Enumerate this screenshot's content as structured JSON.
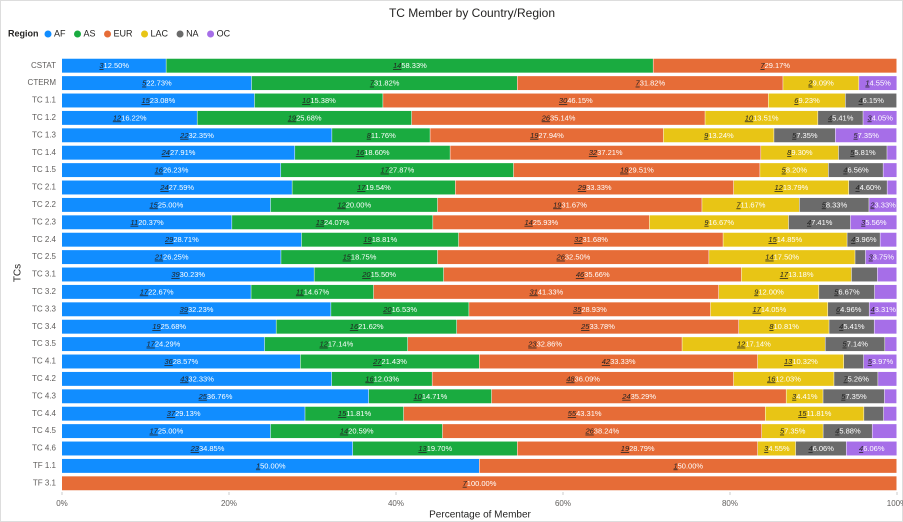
{
  "chart_data": {
    "type": "stacked-bar-100",
    "title": "TC Member by Country/Region",
    "legend_title": "Region",
    "x_label": "Percentage of Member",
    "y_label": "TCs",
    "categories": [
      "CSTAT",
      "CTERM",
      "TC 1.1",
      "TC 1.2",
      "TC 1.3",
      "TC 1.4",
      "TC 1.5",
      "TC 2.1",
      "TC 2.2",
      "TC 2.3",
      "TC 2.4",
      "TC 2.5",
      "TC 3.1",
      "TC 3.2",
      "TC 3.3",
      "TC 3.4",
      "TC 3.5",
      "TC 4.1",
      "TC 4.2",
      "TC 4.3",
      "TC 4.4",
      "TC 4.5",
      "TC 4.6",
      "TF 1.1",
      "TF 3.1"
    ],
    "xlim": [
      0,
      100
    ],
    "xticks": [
      {
        "value": 0,
        "label": "0%"
      },
      {
        "value": 20,
        "label": "20%"
      },
      {
        "value": 40,
        "label": "40%"
      },
      {
        "value": 60,
        "label": "60%"
      },
      {
        "value": 80,
        "label": "80%"
      },
      {
        "value": 100,
        "label": "100%"
      }
    ],
    "series": [
      {
        "name": "AF",
        "color": "#118DFF",
        "values": [
          12.5,
          22.73,
          23.08,
          16.22,
          32.35,
          27.91,
          26.23,
          27.59,
          25.0,
          20.37,
          28.71,
          26.25,
          30.23,
          22.67,
          32.23,
          25.68,
          24.29,
          28.57,
          32.33,
          36.76,
          29.13,
          25.0,
          34.85,
          50.0,
          null
        ],
        "value_labels": [
          "12.50%",
          "22.73%",
          "23.08%",
          "16.22%",
          "32.35%",
          "27.91%",
          "26.23%",
          "27.59%",
          "25.00%",
          "20.37%",
          "28.71%",
          "26.25%",
          "30.23%",
          "22.67%",
          "32.23%",
          "25.68%",
          "24.29%",
          "28.57%",
          "32.33%",
          "36.76%",
          "29.13%",
          "25.00%",
          "34.85%",
          "50.00%",
          null
        ],
        "counts": [
          3,
          5,
          15,
          12,
          22,
          24,
          16,
          24,
          15,
          11,
          29,
          21,
          39,
          17,
          39,
          19,
          17,
          36,
          43,
          25,
          37,
          17,
          23,
          1,
          null
        ]
      },
      {
        "name": "AS",
        "color": "#1AAB40",
        "values": [
          58.33,
          31.82,
          15.38,
          25.68,
          11.76,
          18.6,
          27.87,
          19.54,
          20.0,
          24.07,
          18.81,
          18.75,
          15.5,
          14.67,
          16.53,
          21.62,
          17.14,
          21.43,
          12.03,
          14.71,
          11.81,
          20.59,
          19.7,
          null,
          null
        ],
        "value_labels": [
          "58.33%",
          "31.82%",
          "15.38%",
          "25.68%",
          "11.76%",
          "18.60%",
          "27.87%",
          "19.54%",
          "20.00%",
          "24.07%",
          "18.81%",
          "18.75%",
          "15.50%",
          "14.67%",
          "16.53%",
          "21.62%",
          "17.14%",
          "21.43%",
          "12.03%",
          "14.71%",
          "11.81%",
          "20.59%",
          "19.70%",
          null,
          null
        ],
        "counts": [
          14,
          7,
          10,
          19,
          8,
          16,
          17,
          17,
          12,
          13,
          19,
          15,
          20,
          11,
          20,
          16,
          12,
          27,
          16,
          10,
          15,
          14,
          13,
          null,
          null
        ]
      },
      {
        "name": "EUR",
        "color": "#E66C37",
        "values": [
          29.17,
          31.82,
          46.15,
          35.14,
          27.94,
          37.21,
          29.51,
          33.33,
          31.67,
          25.93,
          31.68,
          32.5,
          35.66,
          41.33,
          28.93,
          33.78,
          32.86,
          33.33,
          36.09,
          35.29,
          43.31,
          38.24,
          28.79,
          50.0,
          100.0
        ],
        "value_labels": [
          "29.17%",
          "31.82%",
          "46.15%",
          "35.14%",
          "27.94%",
          "37.21%",
          "29.51%",
          "33.33%",
          "31.67%",
          "25.93%",
          "31.68%",
          "32.50%",
          "35.66%",
          "41.33%",
          "28.93%",
          "33.78%",
          "32.86%",
          "33.33%",
          "36.09%",
          "35.29%",
          "43.31%",
          "38.24%",
          "28.79%",
          "50.00%",
          "100.00%"
        ],
        "counts": [
          7,
          7,
          30,
          26,
          19,
          32,
          18,
          29,
          19,
          14,
          32,
          26,
          46,
          31,
          35,
          25,
          23,
          42,
          48,
          24,
          55,
          26,
          19,
          1,
          7
        ]
      },
      {
        "name": "LAC",
        "color": "#E8C515",
        "values": [
          null,
          9.09,
          9.23,
          13.51,
          13.24,
          9.3,
          8.2,
          13.79,
          11.67,
          16.67,
          14.85,
          17.5,
          13.18,
          12.0,
          14.05,
          10.81,
          17.14,
          10.32,
          12.03,
          4.41,
          11.81,
          7.35,
          4.55,
          null,
          null
        ],
        "value_labels": [
          null,
          "9.09%",
          "9.23%",
          "13.51%",
          "13.24%",
          "9.30%",
          "8.20%",
          "13.79%",
          "11.67%",
          "16.67%",
          "14.85%",
          "17.50%",
          "13.18%",
          "12.00%",
          "14.05%",
          "10.81%",
          "17.14%",
          "10.32%",
          "12.03%",
          "4.41%",
          "11.81%",
          "7.35%",
          "4.55%",
          null,
          null
        ],
        "counts": [
          null,
          2,
          6,
          10,
          9,
          8,
          5,
          12,
          7,
          9,
          15,
          14,
          17,
          9,
          17,
          8,
          12,
          13,
          16,
          3,
          15,
          5,
          3,
          null,
          null
        ]
      },
      {
        "name": "NA",
        "color": "#6B6B6B",
        "values": [
          null,
          null,
          6.15,
          5.41,
          7.35,
          5.81,
          6.56,
          4.6,
          8.33,
          7.41,
          3.96,
          1.25,
          3.1,
          6.67,
          4.96,
          5.41,
          7.14,
          2.38,
          5.26,
          7.35,
          2.36,
          5.88,
          6.06,
          null,
          null
        ],
        "value_labels": [
          null,
          null,
          "6.15%",
          "5.41%",
          "7.35%",
          "5.81%",
          "6.56%",
          "4.60%",
          "8.33%",
          "7.41%",
          "3.96%",
          null,
          null,
          "6.67%",
          "4.96%",
          "5.41%",
          "7.14%",
          null,
          "5.26%",
          "7.35%",
          null,
          "5.88%",
          "6.06%",
          null,
          null
        ],
        "counts": [
          null,
          null,
          4,
          4,
          5,
          5,
          4,
          4,
          5,
          4,
          4,
          null,
          null,
          5,
          6,
          4,
          5,
          null,
          7,
          5,
          null,
          4,
          4,
          null,
          null
        ]
      },
      {
        "name": "OC",
        "color": "#A66EE8",
        "values": [
          null,
          4.55,
          null,
          4.05,
          7.35,
          1.16,
          1.64,
          1.15,
          3.33,
          5.56,
          1.98,
          3.75,
          2.33,
          2.67,
          3.31,
          2.7,
          1.43,
          3.97,
          2.26,
          1.47,
          1.57,
          2.94,
          6.06,
          null,
          null
        ],
        "value_labels": [
          null,
          "4.55%",
          null,
          "4.05%",
          "7.35%",
          null,
          null,
          null,
          "3.33%",
          "5.56%",
          null,
          "3.75%",
          null,
          null,
          "3.31%",
          null,
          null,
          "3.97%",
          null,
          null,
          null,
          null,
          "6.06%",
          null,
          null
        ],
        "counts": [
          null,
          1,
          null,
          3,
          5,
          null,
          null,
          null,
          2,
          3,
          null,
          3,
          null,
          null,
          4,
          null,
          null,
          5,
          null,
          null,
          null,
          null,
          4,
          null,
          null
        ]
      }
    ]
  }
}
